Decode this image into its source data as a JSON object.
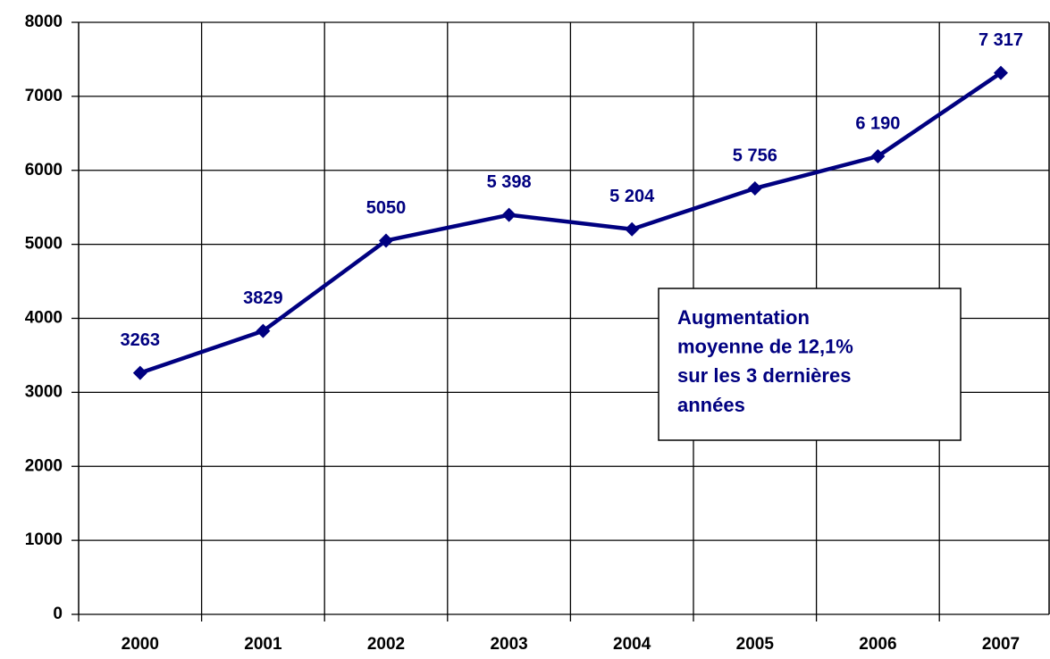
{
  "chart_data": {
    "type": "line",
    "categories": [
      "2000",
      "2001",
      "2002",
      "2003",
      "2004",
      "2005",
      "2006",
      "2007"
    ],
    "series": [
      {
        "color": "#000080",
        "values": [
          3263,
          3829,
          5050,
          5398,
          5204,
          5756,
          6190,
          7317
        ],
        "value_labels": [
          "3263",
          "3829",
          "5050",
          "5 398",
          "5 204",
          "5 756",
          "6 190",
          "7 317"
        ]
      }
    ],
    "ylim": [
      0,
      8000
    ],
    "yticks": [
      0,
      1000,
      2000,
      3000,
      4000,
      5000,
      6000,
      7000,
      8000
    ],
    "grid": true,
    "annotation": [
      "Augmentation",
      "moyenne de 12,1%",
      "sur les 3 dernières",
      "années"
    ]
  }
}
